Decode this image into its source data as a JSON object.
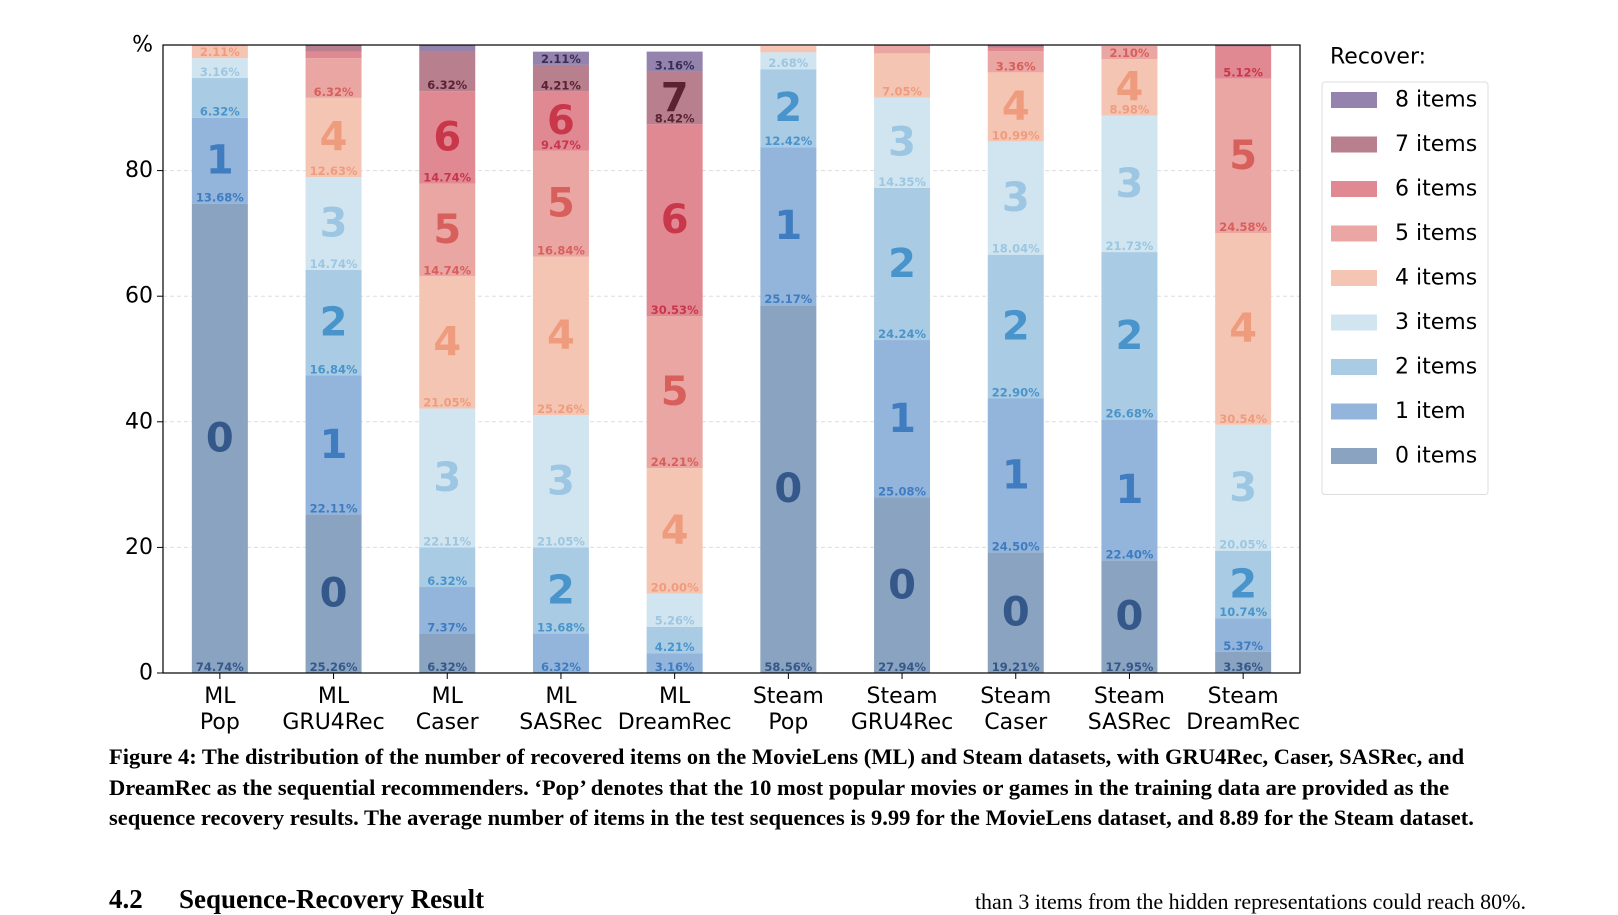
{
  "chart_data": {
    "type": "bar",
    "stacked": true,
    "ylabel": "%",
    "ylim": [
      0,
      100
    ],
    "yticks": [
      0,
      20,
      40,
      60,
      80
    ],
    "grid": true,
    "legend_title": "Recover:",
    "legend_position": "right",
    "categories": [
      [
        "ML",
        "Pop"
      ],
      [
        "ML",
        "GRU4Rec"
      ],
      [
        "ML",
        "Caser"
      ],
      [
        "ML",
        "SASRec"
      ],
      [
        "ML",
        "DreamRec"
      ],
      [
        "Steam",
        "Pop"
      ],
      [
        "Steam",
        "GRU4Rec"
      ],
      [
        "Steam",
        "Caser"
      ],
      [
        "Steam",
        "SASRec"
      ],
      [
        "Steam",
        "DreamRec"
      ]
    ],
    "series": [
      {
        "name": "0 items",
        "digit": "0",
        "color": "#8aa3c0",
        "label_color": "#35588a",
        "values": [
          74.74,
          25.26,
          6.32,
          0,
          0,
          58.56,
          27.94,
          19.21,
          17.95,
          3.36
        ]
      },
      {
        "name": "1 item",
        "digit": "1",
        "color": "#93b5db",
        "label_color": "#3f7cc0",
        "values": [
          13.68,
          22.11,
          7.37,
          6.32,
          3.16,
          25.17,
          25.08,
          24.5,
          22.4,
          5.37
        ]
      },
      {
        "name": "2 items",
        "digit": "2",
        "color": "#a9cce4",
        "label_color": "#4a94cc",
        "values": [
          6.32,
          16.84,
          6.32,
          13.68,
          4.21,
          12.42,
          24.24,
          22.9,
          26.68,
          10.74
        ]
      },
      {
        "name": "3 items",
        "digit": "3",
        "color": "#d1e5f0",
        "label_color": "#9cc6e1",
        "values": [
          3.16,
          14.74,
          22.11,
          21.05,
          5.26,
          2.68,
          14.35,
          18.04,
          21.73,
          20.05
        ]
      },
      {
        "name": "4 items",
        "digit": "4",
        "color": "#f5c5b3",
        "label_color": "#ef9c7e",
        "values": [
          2.11,
          12.63,
          21.05,
          25.26,
          20.0,
          1.0,
          7.05,
          10.99,
          8.98,
          30.54
        ]
      },
      {
        "name": "5 items",
        "digit": "5",
        "color": "#eaa6a3",
        "label_color": "#d7605c",
        "values": [
          0,
          6.32,
          14.74,
          16.84,
          24.21,
          0,
          1.34,
          3.36,
          2.1,
          24.58
        ]
      },
      {
        "name": "6 items",
        "digit": "6",
        "color": "#e18993",
        "label_color": "#c9374a",
        "values": [
          0,
          1.05,
          14.74,
          9.47,
          30.53,
          0,
          0,
          0.6,
          0,
          5.12
        ]
      },
      {
        "name": "7 items",
        "digit": "7",
        "color": "#b87f8e",
        "label_color": "#5b2232",
        "values": [
          0,
          1.05,
          6.32,
          4.21,
          8.42,
          0,
          0,
          0.4,
          0,
          0.24
        ]
      },
      {
        "name": "8 items",
        "digit": "8",
        "color": "#9483ad",
        "label_color": "#3a2c57",
        "values": [
          0,
          0,
          1.05,
          2.11,
          3.16,
          0,
          0,
          0,
          0,
          0
        ]
      }
    ],
    "data_labels": [
      [
        "74.74%",
        "13.68%",
        "6.32%",
        "3.16%",
        "2.11%",
        "",
        "",
        "",
        ""
      ],
      [
        "25.26%",
        "22.11%",
        "16.84%",
        "14.74%",
        "12.63%",
        "6.32%",
        "",
        "",
        ""
      ],
      [
        "6.32%",
        "7.37%",
        "6.32%",
        "22.11%",
        "21.05%",
        "14.74%",
        "14.74%",
        "6.32%",
        ""
      ],
      [
        "",
        "6.32%",
        "13.68%",
        "21.05%",
        "25.26%",
        "16.84%",
        "9.47%",
        "4.21%",
        "2.11%"
      ],
      [
        "",
        "3.16%",
        "4.21%",
        "5.26%",
        "20.00%",
        "24.21%",
        "30.53%",
        "8.42%",
        "3.16%"
      ],
      [
        "58.56%",
        "25.17%",
        "12.42%",
        "2.68%",
        "",
        "",
        "",
        "",
        ""
      ],
      [
        "27.94%",
        "25.08%",
        "24.24%",
        "14.35%",
        "7.05%",
        "",
        "",
        "",
        ""
      ],
      [
        "19.21%",
        "24.50%",
        "22.90%",
        "18.04%",
        "10.99%",
        "3.36%",
        "",
        "",
        ""
      ],
      [
        "17.95%",
        "22.40%",
        "26.68%",
        "21.73%",
        "8.98%",
        "2.10%",
        "",
        "",
        ""
      ],
      [
        "3.36%",
        "5.37%",
        "10.74%",
        "20.05%",
        "30.54%",
        "24.58%",
        "5.12%",
        "",
        ""
      ]
    ]
  },
  "caption": "Figure 4: The distribution of the number of recovered items on the MovieLens (ML) and Steam datasets, with GRU4Rec, Caser, SASRec, and DreamRec as the sequential recommenders. ‘Pop’ denotes that the 10 most popular movies or games in the training data are provided as the sequence recovery results. The average number of items in the test sequences is 9.99 for the MovieLens dataset, and 8.89 for the Steam dataset.",
  "section": {
    "number": "4.2",
    "title": "Sequence-Recovery Result"
  },
  "body_text": "than 3 items from the hidden representations could reach 80%."
}
